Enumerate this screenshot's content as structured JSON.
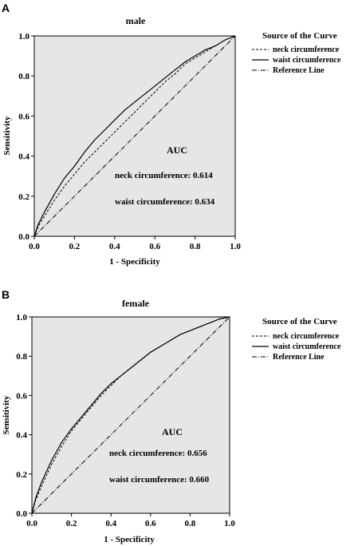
{
  "figure": {
    "panel_letters": [
      "A",
      "B"
    ]
  },
  "chart_data": [
    {
      "type": "line",
      "title": "male",
      "xlabel": "1 - Specificity",
      "ylabel": "Sensitivity",
      "xlim": [
        0,
        1
      ],
      "ylim": [
        0,
        1
      ],
      "x_ticks": [
        "0.0",
        "0.2",
        "0.4",
        "0.6",
        "0.8",
        "1.0"
      ],
      "y_ticks": [
        "0.0",
        "0.2",
        "0.4",
        "0.6",
        "0.8",
        "1.0"
      ],
      "legend_title": "Source of the Curve",
      "legend_position": "right",
      "grid": false,
      "plot_background": "#e6e6e6",
      "series": [
        {
          "name": "neck circumference",
          "style": "dashed",
          "x": [
            0,
            0.02,
            0.05,
            0.1,
            0.15,
            0.2,
            0.25,
            0.3,
            0.35,
            0.4,
            0.45,
            0.5,
            0.55,
            0.6,
            0.65,
            0.7,
            0.75,
            0.8,
            0.85,
            0.9,
            0.95,
            1.0
          ],
          "y": [
            0,
            0.05,
            0.1,
            0.18,
            0.25,
            0.31,
            0.37,
            0.42,
            0.47,
            0.52,
            0.57,
            0.62,
            0.67,
            0.72,
            0.77,
            0.81,
            0.86,
            0.89,
            0.92,
            0.95,
            0.98,
            1.0
          ]
        },
        {
          "name": "waist circumference",
          "style": "solid",
          "x": [
            0,
            0.02,
            0.05,
            0.1,
            0.15,
            0.2,
            0.25,
            0.3,
            0.35,
            0.4,
            0.45,
            0.5,
            0.55,
            0.6,
            0.65,
            0.7,
            0.75,
            0.8,
            0.85,
            0.9,
            0.95,
            1.0
          ],
          "y": [
            0,
            0.06,
            0.12,
            0.21,
            0.29,
            0.35,
            0.42,
            0.48,
            0.53,
            0.58,
            0.63,
            0.67,
            0.71,
            0.75,
            0.79,
            0.83,
            0.87,
            0.9,
            0.93,
            0.95,
            0.98,
            1.0
          ]
        },
        {
          "name": "Reference Line",
          "style": "dashdot",
          "x": [
            0,
            1
          ],
          "y": [
            0,
            1
          ]
        }
      ],
      "annotations": {
        "auc_title": "AUC",
        "lines": [
          "neck circumference: 0.614",
          "waist circumference: 0.634"
        ]
      }
    },
    {
      "type": "line",
      "title": "female",
      "xlabel": "1 - Specificity",
      "ylabel": "Sensitivity",
      "xlim": [
        0,
        1
      ],
      "ylim": [
        0,
        1
      ],
      "x_ticks": [
        "0.0",
        "0.2",
        "0.4",
        "0.6",
        "0.8",
        "1.0"
      ],
      "y_ticks": [
        "0.0",
        "0.2",
        "0.4",
        "0.6",
        "0.8",
        "1.0"
      ],
      "legend_title": "Source of the Curve",
      "legend_position": "right",
      "grid": false,
      "plot_background": "#e6e6e6",
      "series": [
        {
          "name": "neck circumference",
          "style": "dashed",
          "x": [
            0,
            0.02,
            0.05,
            0.1,
            0.15,
            0.2,
            0.25,
            0.3,
            0.35,
            0.4,
            0.45,
            0.5,
            0.55,
            0.6,
            0.65,
            0.7,
            0.75,
            0.8,
            0.85,
            0.9,
            0.95,
            1.0
          ],
          "y": [
            0,
            0.07,
            0.14,
            0.25,
            0.34,
            0.42,
            0.48,
            0.54,
            0.6,
            0.65,
            0.7,
            0.74,
            0.78,
            0.82,
            0.85,
            0.88,
            0.91,
            0.93,
            0.95,
            0.97,
            0.99,
            1.0
          ]
        },
        {
          "name": "waist circumference",
          "style": "solid",
          "x": [
            0,
            0.02,
            0.05,
            0.1,
            0.15,
            0.2,
            0.25,
            0.3,
            0.35,
            0.4,
            0.45,
            0.5,
            0.55,
            0.6,
            0.65,
            0.7,
            0.75,
            0.8,
            0.85,
            0.9,
            0.95,
            1.0
          ],
          "y": [
            0,
            0.08,
            0.16,
            0.27,
            0.36,
            0.43,
            0.49,
            0.55,
            0.61,
            0.66,
            0.7,
            0.74,
            0.78,
            0.82,
            0.85,
            0.88,
            0.91,
            0.93,
            0.95,
            0.97,
            0.99,
            1.0
          ]
        },
        {
          "name": "Reference Line",
          "style": "dashdot",
          "x": [
            0,
            1
          ],
          "y": [
            0,
            1
          ]
        }
      ],
      "annotations": {
        "auc_title": "AUC",
        "lines": [
          "neck circumference: 0.656",
          "waist circumference: 0.660"
        ]
      }
    }
  ]
}
